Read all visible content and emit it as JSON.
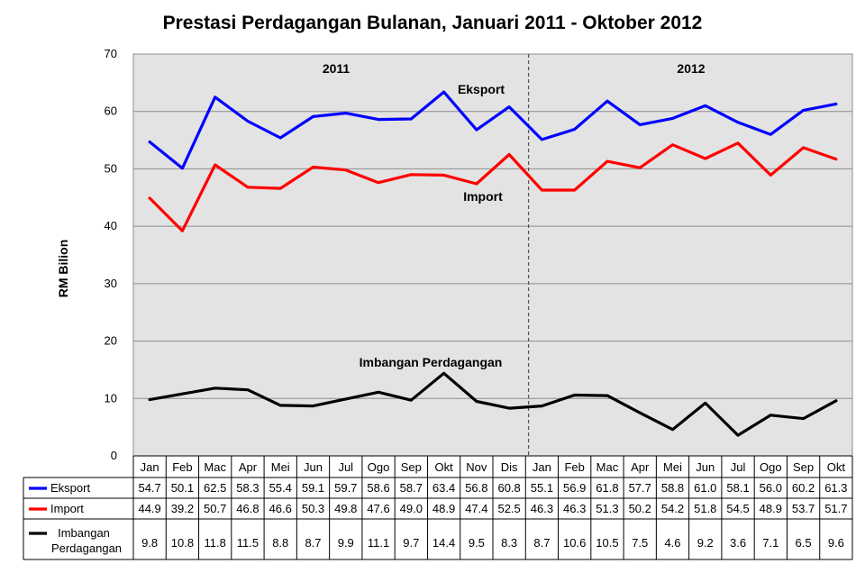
{
  "chart_data": {
    "type": "line",
    "title": "Prestasi Perdagangan Bulanan, Januari 2011 - Oktober 2012",
    "ylabel": "RM Bilion",
    "ylim": [
      0,
      70
    ],
    "yticks": [
      "0",
      "10",
      "20",
      "30",
      "40",
      "50",
      "60",
      "70"
    ],
    "grid": true,
    "categories": [
      "Jan",
      "Feb",
      "Mac",
      "Apr",
      "Mei",
      "Jun",
      "Jul",
      "Ogo",
      "Sep",
      "Okt",
      "Nov",
      "Dis",
      "Jan",
      "Feb",
      "Mac",
      "Apr",
      "Mei",
      "Jun",
      "Jul",
      "Ogo",
      "Sep",
      "Okt"
    ],
    "year_labels": [
      "2011",
      "2012"
    ],
    "series": [
      {
        "name": "Eksport",
        "color": "#0000ff",
        "values": [
          54.7,
          50.1,
          62.5,
          58.3,
          55.4,
          59.1,
          59.7,
          58.6,
          58.7,
          63.4,
          56.8,
          60.8,
          55.1,
          56.9,
          61.8,
          57.7,
          58.8,
          61.0,
          58.1,
          56.0,
          60.2,
          61.3
        ],
        "display": [
          "54.7",
          "50.1",
          "62.5",
          "58.3",
          "55.4",
          "59.1",
          "59.7",
          "58.6",
          "58.7",
          "63.4",
          "56.8",
          "60.8",
          "55.1",
          "56.9",
          "61.8",
          "57.7",
          "58.8",
          "61.0",
          "58.1",
          "56.0",
          "60.2",
          "61.3"
        ]
      },
      {
        "name": "Import",
        "color": "#ff0000",
        "values": [
          44.9,
          39.2,
          50.7,
          46.8,
          46.6,
          50.3,
          49.8,
          47.6,
          49.0,
          48.9,
          47.4,
          52.5,
          46.3,
          46.3,
          51.3,
          50.2,
          54.2,
          51.8,
          54.5,
          48.9,
          53.7,
          51.7
        ],
        "display": [
          "44.9",
          "39.2",
          "50.7",
          "46.8",
          "46.6",
          "50.3",
          "49.8",
          "47.6",
          "49.0",
          "48.9",
          "47.4",
          "52.5",
          "46.3",
          "46.3",
          "51.3",
          "50.2",
          "54.2",
          "51.8",
          "54.5",
          "48.9",
          "53.7",
          "51.7"
        ]
      },
      {
        "name": "Imbangan Perdagangan",
        "table_name_lines": [
          "Imbangan",
          "Perdagangan"
        ],
        "color": "#000000",
        "values": [
          9.8,
          10.8,
          11.8,
          11.5,
          8.8,
          8.7,
          9.9,
          11.1,
          9.7,
          14.4,
          9.5,
          8.3,
          8.7,
          10.6,
          10.5,
          7.5,
          4.6,
          9.2,
          3.6,
          7.1,
          6.5,
          9.6
        ],
        "display": [
          "9.8",
          "10.8",
          "11.8",
          "11.5",
          "8.8",
          "8.7",
          "9.9",
          "11.1",
          "9.7",
          "14.4",
          "9.5",
          "8.3",
          "8.7",
          "10.6",
          "10.5",
          "7.5",
          "4.6",
          "9.2",
          "3.6",
          "7.1",
          "6.5",
          "9.6"
        ]
      }
    ],
    "colors": {
      "plot_bg": "#e3e3e3",
      "grid": "#8c8c8c",
      "divider": "#555555"
    }
  }
}
